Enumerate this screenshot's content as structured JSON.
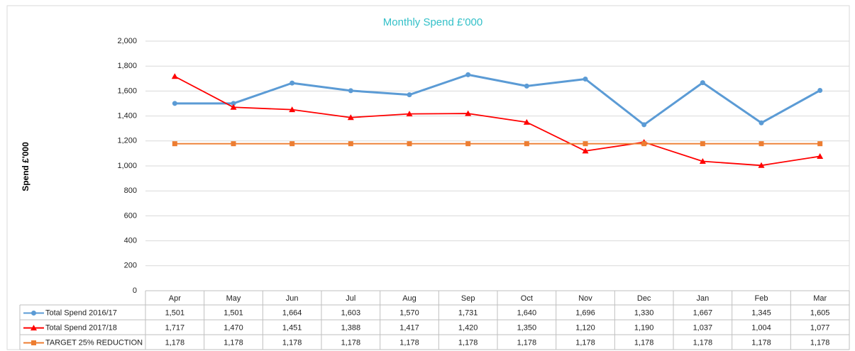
{
  "chart_data": {
    "type": "line",
    "title": "Monthly Spend £'000",
    "y_axis_label": "Spend £'000",
    "categories": [
      "Apr",
      "May",
      "Jun",
      "Jul",
      "Aug",
      "Sep",
      "Oct",
      "Nov",
      "Dec",
      "Jan",
      "Feb",
      "Mar"
    ],
    "series": [
      {
        "name": "Total Spend 2016/17",
        "color": "#5b9bd5",
        "marker": "circle",
        "values": [
          1501,
          1501,
          1664,
          1603,
          1570,
          1731,
          1640,
          1696,
          1330,
          1667,
          1345,
          1605
        ],
        "value_labels": [
          "1,501",
          "1,501",
          "1,664",
          "1,603",
          "1,570",
          "1,731",
          "1,640",
          "1,696",
          "1,330",
          "1,667",
          "1,345",
          "1,605"
        ]
      },
      {
        "name": "Total Spend 2017/18",
        "color": "#ff0000",
        "marker": "triangle",
        "values": [
          1717,
          1470,
          1451,
          1388,
          1417,
          1420,
          1350,
          1120,
          1190,
          1037,
          1004,
          1077
        ],
        "value_labels": [
          "1,717",
          "1,470",
          "1,451",
          "1,388",
          "1,417",
          "1,420",
          "1,350",
          "1,120",
          "1,190",
          "1,037",
          "1,004",
          "1,077"
        ]
      },
      {
        "name": "TARGET 25% REDUCTION",
        "color": "#ed7d31",
        "marker": "square",
        "values": [
          1178,
          1178,
          1178,
          1178,
          1178,
          1178,
          1178,
          1178,
          1178,
          1178,
          1178,
          1178
        ],
        "value_labels": [
          "1,178",
          "1,178",
          "1,178",
          "1,178",
          "1,178",
          "1,178",
          "1,178",
          "1,178",
          "1,178",
          "1,178",
          "1,178",
          "1,178"
        ]
      }
    ],
    "ylim": [
      0,
      2000
    ],
    "yticks": [
      0,
      200,
      400,
      600,
      800,
      {
        "value": 1000,
        "label": "1,000"
      },
      {
        "value": 1200,
        "label": "1,200"
      },
      {
        "value": 1400,
        "label": "1,400"
      },
      {
        "value": 1600,
        "label": "1,600"
      },
      {
        "value": 1800,
        "label": "1,800"
      },
      {
        "value": 2000,
        "label": "2,000"
      }
    ],
    "grid": true,
    "data_table": true
  }
}
